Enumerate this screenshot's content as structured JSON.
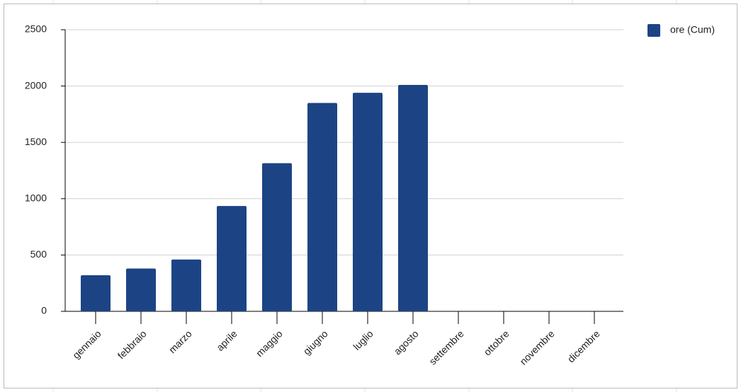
{
  "chart_data": {
    "type": "bar",
    "categories": [
      "gennaio",
      "febbraio",
      "marzo",
      "aprile",
      "maggio",
      "giugno",
      "luglio",
      "agosto",
      "settembre",
      "ottobre",
      "novembre",
      "dicembre"
    ],
    "series": [
      {
        "name": "ore (Cum)",
        "color": "#1c4484",
        "values": [
          320,
          380,
          460,
          935,
          1315,
          1850,
          1940,
          2010,
          null,
          null,
          null,
          null
        ]
      }
    ],
    "ylim": [
      0,
      2500
    ],
    "yticks": [
      0,
      500,
      1000,
      1500,
      2000,
      2500
    ],
    "grid": true,
    "legend": "top-right"
  }
}
